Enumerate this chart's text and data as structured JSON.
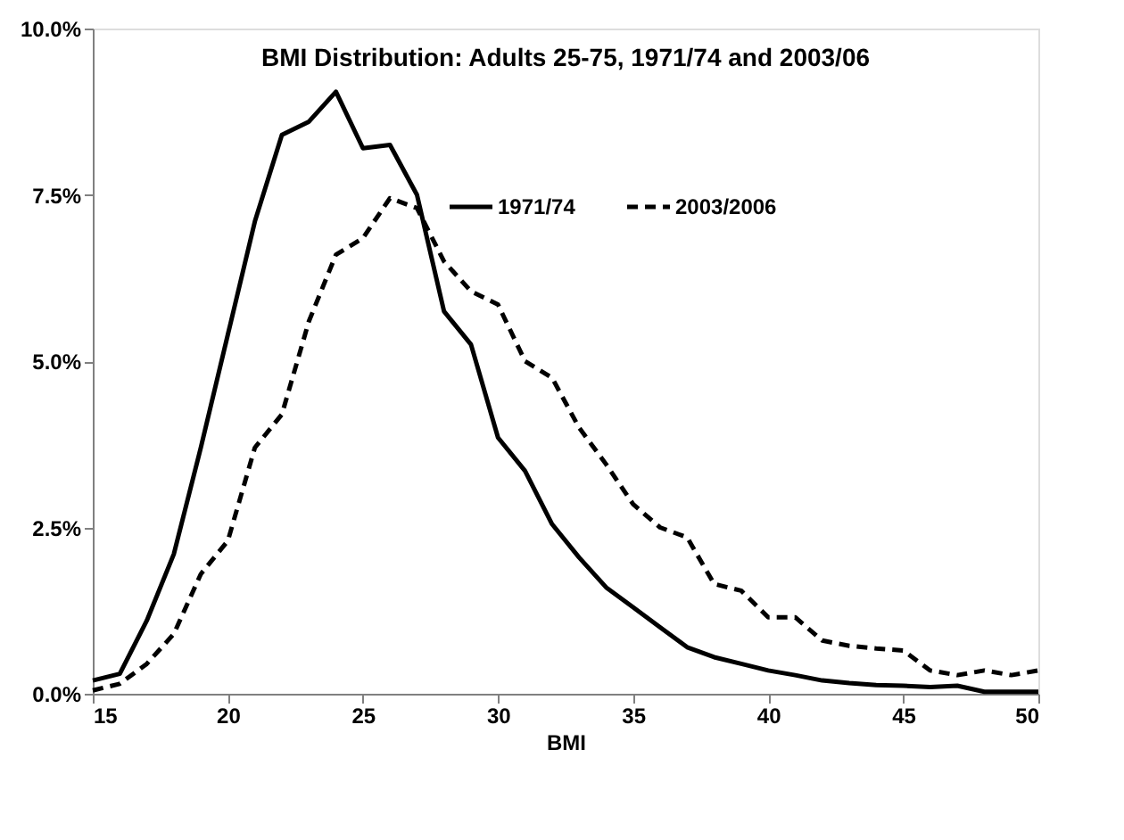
{
  "chart_data": {
    "type": "line",
    "title": "BMI Distribution:  Adults 25-75, 1971/74 and 2003/06",
    "xlabel": "BMI",
    "x": [
      15,
      16,
      17,
      18,
      19,
      20,
      21,
      22,
      23,
      24,
      25,
      26,
      27,
      28,
      29,
      30,
      31,
      32,
      33,
      34,
      35,
      36,
      37,
      38,
      39,
      40,
      41,
      42,
      43,
      44,
      45,
      46,
      47,
      48,
      49,
      50
    ],
    "series": [
      {
        "name": "1971/74",
        "color": "#000000",
        "line_style": "solid",
        "values": [
          0.2,
          0.3,
          1.1,
          2.1,
          3.7,
          5.4,
          7.1,
          8.4,
          8.6,
          9.05,
          8.2,
          8.25,
          7.5,
          5.75,
          5.25,
          3.85,
          3.35,
          2.55,
          2.05,
          1.6,
          1.3,
          1.0,
          0.7,
          0.55,
          0.45,
          0.35,
          0.28,
          0.2,
          0.16,
          0.13,
          0.12,
          0.1,
          0.12,
          0.03,
          0.03,
          0.03
        ]
      },
      {
        "name": "2003/2006",
        "color": "#000000",
        "line_style": "dashed",
        "values": [
          0.05,
          0.15,
          0.45,
          0.9,
          1.8,
          2.3,
          3.7,
          4.2,
          5.6,
          6.6,
          6.85,
          7.45,
          7.3,
          6.5,
          6.05,
          5.85,
          5.0,
          4.75,
          4.0,
          3.45,
          2.85,
          2.5,
          2.35,
          1.65,
          1.55,
          1.15,
          1.15,
          0.8,
          0.72,
          0.68,
          0.65,
          0.35,
          0.28,
          0.35,
          0.28,
          0.35
        ]
      }
    ],
    "xlim": [
      15,
      50
    ],
    "xticks": [
      15,
      20,
      25,
      30,
      35,
      40,
      45,
      50
    ],
    "ylim": [
      0,
      10
    ],
    "yticks": [
      {
        "value": 0,
        "label": "0.0%"
      },
      {
        "value": 2.5,
        "label": "2.5%"
      },
      {
        "value": 5,
        "label": "5.0%"
      },
      {
        "value": 7.5,
        "label": "7.5%"
      },
      {
        "value": 10,
        "label": "10.0%"
      }
    ],
    "grid": false,
    "legend": "top right",
    "marker": "none"
  }
}
